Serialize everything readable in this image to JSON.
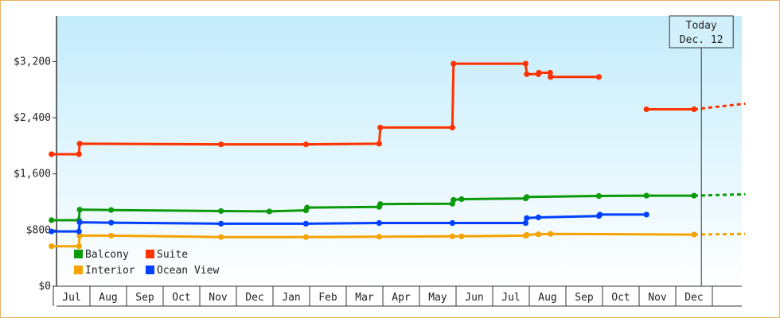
{
  "chart_data": {
    "type": "line",
    "step": true,
    "title": "",
    "xlabel": "",
    "ylabel": "",
    "ylim": [
      0,
      3850
    ],
    "yticks": [
      {
        "value": 0,
        "label": "$0"
      },
      {
        "value": 800,
        "label": "$800"
      },
      {
        "value": 1600,
        "label": "$1,600"
      },
      {
        "value": 2400,
        "label": "$2,400"
      },
      {
        "value": 3200,
        "label": "$3,200"
      }
    ],
    "x_unit": "months since Jun (year 1)",
    "xlim": [
      0,
      18.9
    ],
    "xticks": [
      {
        "value": 0.5,
        "label": "Jul"
      },
      {
        "value": 1.5,
        "label": "Aug"
      },
      {
        "value": 2.5,
        "label": "Sep"
      },
      {
        "value": 3.5,
        "label": "Oct"
      },
      {
        "value": 4.5,
        "label": "Nov"
      },
      {
        "value": 5.5,
        "label": "Dec"
      },
      {
        "value": 6.5,
        "label": "Jan"
      },
      {
        "value": 7.5,
        "label": "Feb"
      },
      {
        "value": 8.5,
        "label": "Mar"
      },
      {
        "value": 9.5,
        "label": "Apr"
      },
      {
        "value": 10.5,
        "label": "May"
      },
      {
        "value": 11.5,
        "label": "Jun"
      },
      {
        "value": 12.5,
        "label": "Jul"
      },
      {
        "value": 13.5,
        "label": "Aug"
      },
      {
        "value": 14.5,
        "label": "Sep"
      },
      {
        "value": 15.5,
        "label": "Oct"
      },
      {
        "value": 16.5,
        "label": "Nov"
      },
      {
        "value": 17.5,
        "label": "Dec"
      }
    ],
    "today": {
      "x": 17.7,
      "label_line1": "Today",
      "label_line2": "Dec. 12"
    },
    "legend": {
      "placement": "lower-left"
    },
    "series": [
      {
        "name": "Balcony",
        "color": "#0a9a0a",
        "points": [
          [
            -0.05,
            940
          ],
          [
            0.7,
            940
          ],
          [
            0.72,
            1090
          ],
          [
            1.58,
            1085
          ],
          [
            4.58,
            1070
          ],
          [
            5.9,
            1065
          ],
          [
            6.9,
            1080
          ],
          [
            6.93,
            1120
          ],
          [
            8.9,
            1130
          ],
          [
            8.93,
            1170
          ],
          [
            10.9,
            1175
          ],
          [
            10.93,
            1230
          ],
          [
            11.15,
            1240
          ],
          [
            12.9,
            1250
          ],
          [
            12.93,
            1270
          ],
          [
            14.9,
            1285
          ],
          [
            16.2,
            1290
          ],
          [
            17.5,
            1290
          ]
        ],
        "projection": [
          [
            17.5,
            1290
          ],
          [
            18.9,
            1310
          ]
        ]
      },
      {
        "name": "Suite",
        "color": "#ff3300",
        "points": [
          [
            -0.05,
            1880
          ],
          [
            0.7,
            1880
          ],
          [
            0.72,
            2030
          ],
          [
            4.58,
            2020
          ],
          [
            6.9,
            2020
          ],
          [
            8.9,
            2030
          ],
          [
            8.93,
            2260
          ],
          [
            10.9,
            2260
          ],
          [
            10.93,
            3170
          ],
          [
            12.9,
            3170
          ],
          [
            12.93,
            3020
          ],
          [
            13.25,
            3020
          ],
          [
            13.26,
            3040
          ],
          [
            13.57,
            3040
          ],
          [
            13.58,
            2980
          ],
          [
            14.9,
            2980
          ]
        ],
        "segment2": [
          [
            16.2,
            2520
          ],
          [
            17.5,
            2520
          ]
        ],
        "projection": [
          [
            17.5,
            2520
          ],
          [
            18.9,
            2600
          ]
        ]
      },
      {
        "name": "Interior",
        "color": "#f5a300",
        "points": [
          [
            -0.05,
            570
          ],
          [
            0.7,
            570
          ],
          [
            0.72,
            720
          ],
          [
            1.58,
            720
          ],
          [
            4.58,
            700
          ],
          [
            6.9,
            700
          ],
          [
            8.9,
            705
          ],
          [
            10.9,
            710
          ],
          [
            11.15,
            710
          ],
          [
            12.9,
            720
          ],
          [
            12.93,
            730
          ],
          [
            13.25,
            740
          ],
          [
            13.58,
            745
          ],
          [
            17.5,
            735
          ]
        ],
        "projection": [
          [
            17.5,
            735
          ],
          [
            18.9,
            745
          ]
        ]
      },
      {
        "name": "Ocean View",
        "color": "#0040ff",
        "points": [
          [
            -0.05,
            780
          ],
          [
            0.7,
            780
          ],
          [
            0.72,
            910
          ],
          [
            1.58,
            905
          ],
          [
            4.58,
            890
          ],
          [
            6.9,
            890
          ],
          [
            8.9,
            900
          ],
          [
            10.9,
            900
          ],
          [
            12.9,
            900
          ],
          [
            12.93,
            970
          ],
          [
            13.25,
            980
          ],
          [
            14.9,
            1000
          ],
          [
            14.93,
            1020
          ],
          [
            16.2,
            1020
          ]
        ],
        "projection": []
      }
    ]
  }
}
